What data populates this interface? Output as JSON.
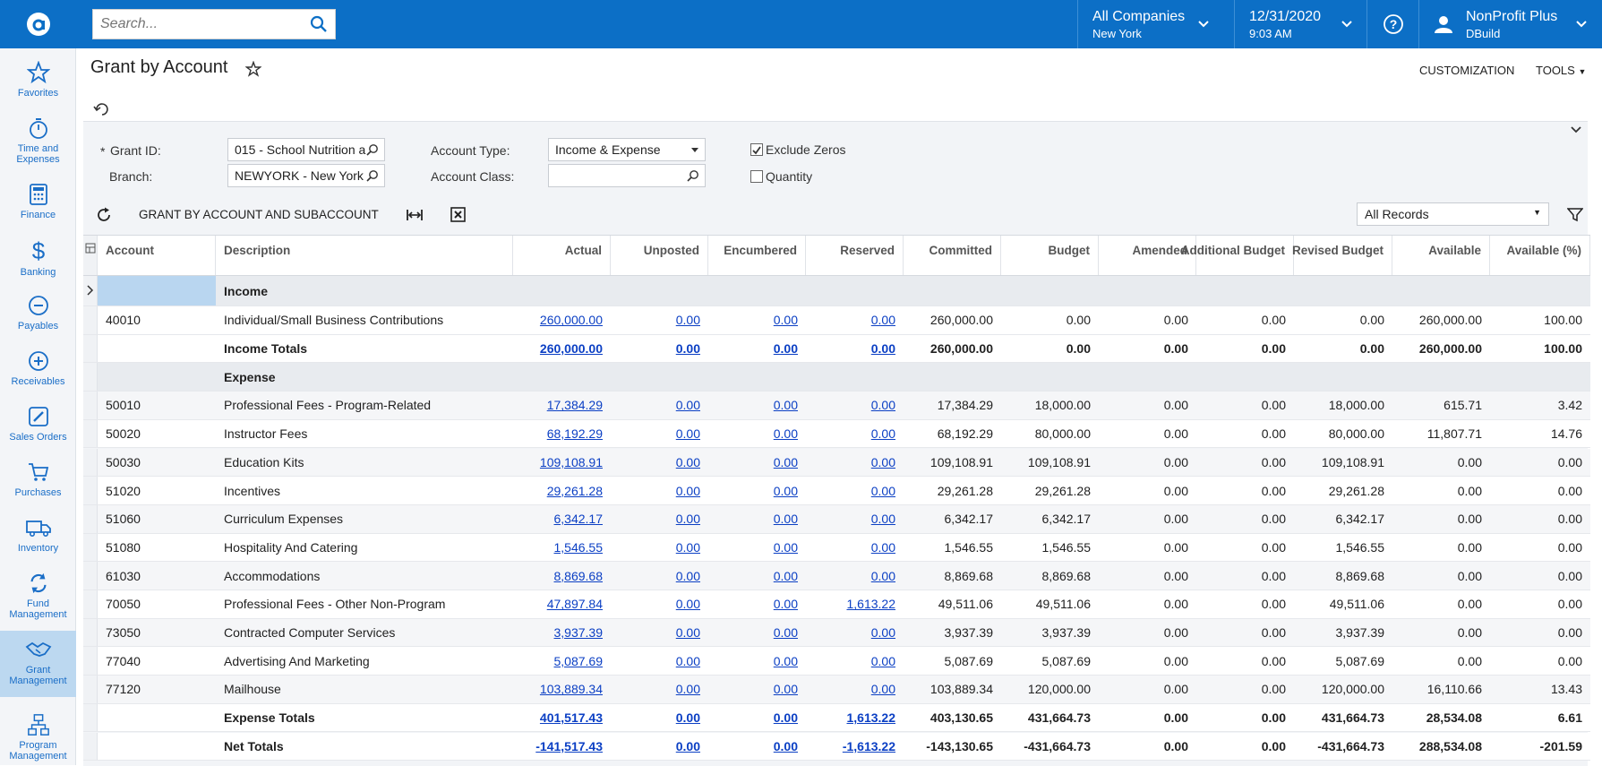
{
  "topbar": {
    "search_placeholder": "Search...",
    "company": "All Companies",
    "company_sub": "New York",
    "date": "12/31/2020",
    "time": "9:03 AM",
    "user": "NonProfit Plus",
    "user_sub": "DBuild"
  },
  "sidebar": [
    {
      "label": "Favorites",
      "icon": "star-icon"
    },
    {
      "label": "Time and Expenses",
      "icon": "stopwatch-icon"
    },
    {
      "label": "Finance",
      "icon": "calculator-icon"
    },
    {
      "label": "Banking",
      "icon": "dollar-icon"
    },
    {
      "label": "Payables",
      "icon": "minus-circle-icon"
    },
    {
      "label": "Receivables",
      "icon": "plus-circle-icon"
    },
    {
      "label": "Sales Orders",
      "icon": "pencil-icon"
    },
    {
      "label": "Purchases",
      "icon": "cart-icon"
    },
    {
      "label": "Inventory",
      "icon": "truck-icon"
    },
    {
      "label": "Fund Management",
      "icon": "cycle-icon"
    },
    {
      "label": "Grant Management",
      "icon": "handshake-icon"
    },
    {
      "label": "Program Management",
      "icon": "org-chart-icon"
    }
  ],
  "page": {
    "title": "Grant by Account",
    "customization": "CUSTOMIZATION",
    "tools": "TOOLS"
  },
  "filters": {
    "grant_id_label": "Grant ID:",
    "grant_id_value": "015 - School Nutrition a",
    "branch_label": "Branch:",
    "branch_value": "NEWYORK - New York",
    "account_type_label": "Account Type:",
    "account_type_value": "Income & Expense",
    "account_class_label": "Account Class:",
    "account_class_value": "",
    "exclude_zeros_label": "Exclude Zeros",
    "exclude_zeros_checked": true,
    "quantity_label": "Quantity",
    "quantity_checked": false
  },
  "toolbar": {
    "grant_by_sub": "GRANT BY ACCOUNT AND SUBACCOUNT",
    "records": "All Records"
  },
  "columns": [
    "Account",
    "Description",
    "Actual",
    "Unposted",
    "Encumbered",
    "Reserved",
    "Committed",
    "Budget",
    "Amended",
    "Additional Budget",
    "Revised Budget",
    "Available",
    "Available (%)"
  ],
  "rows": [
    {
      "type": "group",
      "account": "",
      "description": "Income"
    },
    {
      "type": "data",
      "account": "40010",
      "description": "Individual/Small Business Contributions",
      "actual": "260,000.00",
      "unposted": "0.00",
      "encumbered": "0.00",
      "reserved": "0.00",
      "committed": "260,000.00",
      "budget": "0.00",
      "amended": "0.00",
      "additional": "0.00",
      "revised": "0.00",
      "available": "260,000.00",
      "available_pct": "100.00"
    },
    {
      "type": "total",
      "account": "",
      "description": "Income Totals",
      "actual": "260,000.00",
      "unposted": "0.00",
      "encumbered": "0.00",
      "reserved": "0.00",
      "committed": "260,000.00",
      "budget": "0.00",
      "amended": "0.00",
      "additional": "0.00",
      "revised": "0.00",
      "available": "260,000.00",
      "available_pct": "100.00"
    },
    {
      "type": "group",
      "account": "",
      "description": "Expense"
    },
    {
      "type": "data",
      "account": "50010",
      "description": "Professional Fees - Program-Related",
      "actual": "17,384.29",
      "unposted": "0.00",
      "encumbered": "0.00",
      "reserved": "0.00",
      "committed": "17,384.29",
      "budget": "18,000.00",
      "amended": "0.00",
      "additional": "0.00",
      "revised": "18,000.00",
      "available": "615.71",
      "available_pct": "3.42"
    },
    {
      "type": "data",
      "account": "50020",
      "description": "Instructor Fees",
      "actual": "68,192.29",
      "unposted": "0.00",
      "encumbered": "0.00",
      "reserved": "0.00",
      "committed": "68,192.29",
      "budget": "80,000.00",
      "amended": "0.00",
      "additional": "0.00",
      "revised": "80,000.00",
      "available": "11,807.71",
      "available_pct": "14.76"
    },
    {
      "type": "data",
      "account": "50030",
      "description": "Education Kits",
      "actual": "109,108.91",
      "unposted": "0.00",
      "encumbered": "0.00",
      "reserved": "0.00",
      "committed": "109,108.91",
      "budget": "109,108.91",
      "amended": "0.00",
      "additional": "0.00",
      "revised": "109,108.91",
      "available": "0.00",
      "available_pct": "0.00"
    },
    {
      "type": "data",
      "account": "51020",
      "description": "Incentives",
      "actual": "29,261.28",
      "unposted": "0.00",
      "encumbered": "0.00",
      "reserved": "0.00",
      "committed": "29,261.28",
      "budget": "29,261.28",
      "amended": "0.00",
      "additional": "0.00",
      "revised": "29,261.28",
      "available": "0.00",
      "available_pct": "0.00"
    },
    {
      "type": "data",
      "account": "51060",
      "description": "Curriculum Expenses",
      "actual": "6,342.17",
      "unposted": "0.00",
      "encumbered": "0.00",
      "reserved": "0.00",
      "committed": "6,342.17",
      "budget": "6,342.17",
      "amended": "0.00",
      "additional": "0.00",
      "revised": "6,342.17",
      "available": "0.00",
      "available_pct": "0.00"
    },
    {
      "type": "data",
      "account": "51080",
      "description": "Hospitality And Catering",
      "actual": "1,546.55",
      "unposted": "0.00",
      "encumbered": "0.00",
      "reserved": "0.00",
      "committed": "1,546.55",
      "budget": "1,546.55",
      "amended": "0.00",
      "additional": "0.00",
      "revised": "1,546.55",
      "available": "0.00",
      "available_pct": "0.00"
    },
    {
      "type": "data",
      "account": "61030",
      "description": "Accommodations",
      "actual": "8,869.68",
      "unposted": "0.00",
      "encumbered": "0.00",
      "reserved": "0.00",
      "committed": "8,869.68",
      "budget": "8,869.68",
      "amended": "0.00",
      "additional": "0.00",
      "revised": "8,869.68",
      "available": "0.00",
      "available_pct": "0.00"
    },
    {
      "type": "data",
      "account": "70050",
      "description": "Professional Fees - Other Non-Program",
      "actual": "47,897.84",
      "unposted": "0.00",
      "encumbered": "0.00",
      "reserved": "1,613.22",
      "committed": "49,511.06",
      "budget": "49,511.06",
      "amended": "0.00",
      "additional": "0.00",
      "revised": "49,511.06",
      "available": "0.00",
      "available_pct": "0.00"
    },
    {
      "type": "data",
      "account": "73050",
      "description": "Contracted Computer Services",
      "actual": "3,937.39",
      "unposted": "0.00",
      "encumbered": "0.00",
      "reserved": "0.00",
      "committed": "3,937.39",
      "budget": "3,937.39",
      "amended": "0.00",
      "additional": "0.00",
      "revised": "3,937.39",
      "available": "0.00",
      "available_pct": "0.00"
    },
    {
      "type": "data",
      "account": "77040",
      "description": "Advertising And Marketing",
      "actual": "5,087.69",
      "unposted": "0.00",
      "encumbered": "0.00",
      "reserved": "0.00",
      "committed": "5,087.69",
      "budget": "5,087.69",
      "amended": "0.00",
      "additional": "0.00",
      "revised": "5,087.69",
      "available": "0.00",
      "available_pct": "0.00"
    },
    {
      "type": "data",
      "account": "77120",
      "description": "Mailhouse",
      "actual": "103,889.34",
      "unposted": "0.00",
      "encumbered": "0.00",
      "reserved": "0.00",
      "committed": "103,889.34",
      "budget": "120,000.00",
      "amended": "0.00",
      "additional": "0.00",
      "revised": "120,000.00",
      "available": "16,110.66",
      "available_pct": "13.43"
    },
    {
      "type": "total",
      "account": "",
      "description": "Expense Totals",
      "actual": "401,517.43",
      "unposted": "0.00",
      "encumbered": "0.00",
      "reserved": "1,613.22",
      "committed": "403,130.65",
      "budget": "431,664.73",
      "amended": "0.00",
      "additional": "0.00",
      "revised": "431,664.73",
      "available": "28,534.08",
      "available_pct": "6.61"
    },
    {
      "type": "total",
      "account": "",
      "description": "Net Totals",
      "actual": "-141,517.43",
      "unposted": "0.00",
      "encumbered": "0.00",
      "reserved": "-1,613.22",
      "committed": "-143,130.65",
      "budget": "-431,664.73",
      "amended": "0.00",
      "additional": "0.00",
      "revised": "-431,664.73",
      "available": "288,534.08",
      "available_pct": "-201.59"
    }
  ]
}
